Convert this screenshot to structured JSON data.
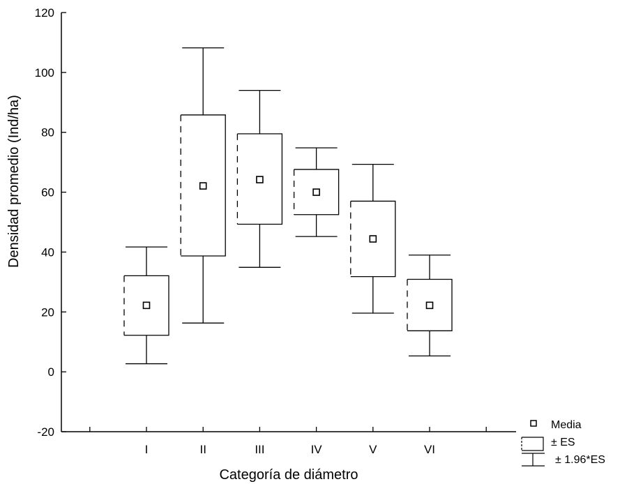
{
  "chart_data": {
    "type": "boxplot",
    "xlabel": "Categoría de diámetro",
    "ylabel": "Densidad promedio (Ind/ha)",
    "ylim": [
      -20,
      120
    ],
    "yticks": [
      -20,
      0,
      20,
      40,
      60,
      80,
      100,
      120
    ],
    "categories": [
      "I",
      "II",
      "III",
      "IV",
      "V",
      "VI"
    ],
    "boxes": [
      {
        "category": "I",
        "mean": 22.2,
        "se_low": 12.2,
        "se_high": 32.1,
        "ci_low": 2.7,
        "ci_high": 41.7
      },
      {
        "category": "II",
        "mean": 62.1,
        "se_low": 38.7,
        "se_high": 85.8,
        "ci_low": 16.3,
        "ci_high": 108.2
      },
      {
        "category": "III",
        "mean": 64.2,
        "se_low": 49.3,
        "se_high": 79.5,
        "ci_low": 34.9,
        "ci_high": 94.0
      },
      {
        "category": "IV",
        "mean": 60.0,
        "se_low": 52.5,
        "se_high": 67.6,
        "ci_low": 45.2,
        "ci_high": 74.8
      },
      {
        "category": "V",
        "mean": 44.4,
        "se_low": 31.8,
        "se_high": 57.0,
        "ci_low": 19.6,
        "ci_high": 69.3
      },
      {
        "category": "VI",
        "mean": 22.2,
        "se_low": 13.7,
        "se_high": 30.9,
        "ci_low": 5.3,
        "ci_high": 39.0
      }
    ],
    "legend": {
      "position": "bottom-right",
      "entries": [
        {
          "symbol": "mean-square",
          "label": "Media"
        },
        {
          "symbol": "box",
          "label": "± ES"
        },
        {
          "symbol": "whisker",
          "label": "± 1.96*ES"
        }
      ]
    },
    "grid": false
  }
}
